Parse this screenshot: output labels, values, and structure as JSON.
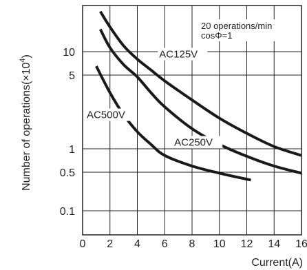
{
  "chart_data": {
    "type": "line",
    "title": "",
    "xlabel": "Current(A)",
    "ylabel_main": "Number of operations(×10",
    "ylabel_exp": "4",
    "ylabel_close": ")",
    "xlim": [
      0,
      16
    ],
    "x_ticks": [
      "0",
      "2",
      "4",
      "6",
      "8",
      "10",
      "12",
      "14",
      "16"
    ],
    "y_ticks": [
      {
        "label": "10",
        "value": 10
      },
      {
        "label": "5",
        "value": 5
      },
      {
        "label": "1",
        "value": 1
      },
      {
        "label": "0.5",
        "value": 0.5
      },
      {
        "label": "0.1",
        "value": 0.1
      }
    ],
    "y_scale": "log",
    "grid": true,
    "note_line1": "20 operations/min",
    "note_line2": "cosΦ=1",
    "series": [
      {
        "name": "AC125V",
        "x": [
          1.3,
          2,
          3,
          4,
          5,
          6,
          8,
          10,
          12,
          14,
          16
        ],
        "y": [
          26,
          18,
          11.5,
          8,
          5.8,
          4.4,
          2.9,
          1.95,
          1.4,
          1.05,
          0.82
        ]
      },
      {
        "name": "AC250V",
        "x": [
          1.3,
          2,
          3,
          4,
          5,
          6,
          8,
          10,
          12,
          14,
          16
        ],
        "y": [
          17,
          11,
          6.8,
          4.8,
          3.4,
          2.5,
          1.55,
          1.1,
          0.8,
          0.6,
          0.48
        ]
      },
      {
        "name": "AC500V",
        "x": [
          1,
          2,
          3,
          4,
          5,
          6,
          8,
          10,
          12.3
        ],
        "y": [
          6.5,
          3.4,
          2.1,
          1.45,
          1.1,
          0.82,
          0.6,
          0.48,
          0.36
        ]
      }
    ]
  }
}
